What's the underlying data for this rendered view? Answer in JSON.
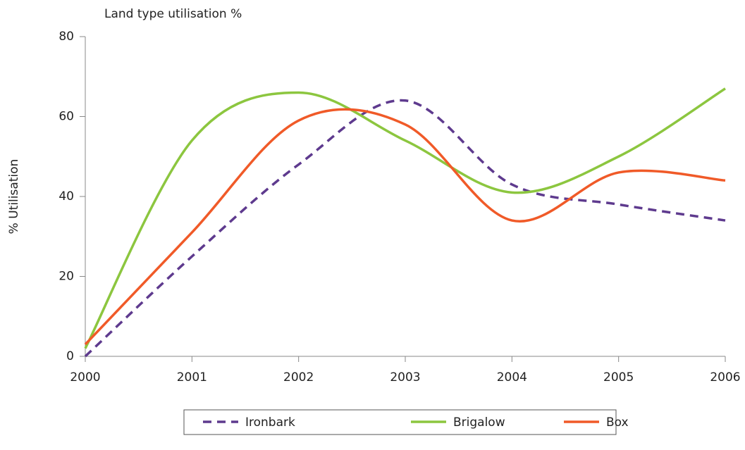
{
  "chart_data": {
    "type": "line",
    "title": "Land type utilisation %",
    "y_label": "% Utilisation",
    "x": [
      2000,
      2001,
      2002,
      2003,
      2004,
      2005,
      2006
    ],
    "series": [
      {
        "name": "Ironbark",
        "color": "#5e3a8e",
        "dashed": true,
        "values": [
          0,
          25,
          48,
          64,
          43,
          38,
          34
        ]
      },
      {
        "name": "Brigalow",
        "color": "#8cc63f",
        "dashed": false,
        "values": [
          2,
          54,
          66,
          54,
          41,
          50,
          67
        ]
      },
      {
        "name": "Box",
        "color": "#f05a28",
        "dashed": false,
        "values": [
          3,
          31,
          59,
          58,
          34,
          46,
          44
        ]
      }
    ],
    "xlim": [
      2000,
      2006
    ],
    "xticks": [
      2000,
      2001,
      2002,
      2003,
      2004,
      2005,
      2006
    ],
    "ylim": [
      0,
      80
    ],
    "yticks": [
      0,
      20,
      40,
      60,
      80
    ],
    "grid": false,
    "smooth": true,
    "legend": "bottom"
  }
}
